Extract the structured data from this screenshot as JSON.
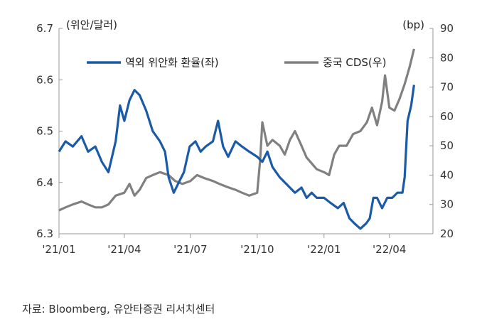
{
  "chart_data": {
    "type": "line",
    "title": "",
    "left_axis": {
      "label": "(위안/달러)",
      "min": 6.3,
      "max": 6.7,
      "ticks": [
        "6.3",
        "6.4",
        "6.5",
        "6.6",
        "6.7"
      ]
    },
    "right_axis": {
      "label": "(bp)",
      "min": 20,
      "max": 90,
      "ticks": [
        "20",
        "30",
        "40",
        "50",
        "60",
        "70",
        "80",
        "90"
      ]
    },
    "x_axis": {
      "start": "2021-01-01",
      "end": "2022-05-31",
      "ticks": [
        {
          "label": "'21/01",
          "date": "2021-01-01"
        },
        {
          "label": "'21/04",
          "date": "2021-04-01"
        },
        {
          "label": "'21/07",
          "date": "2021-07-01"
        },
        {
          "label": "'21/10",
          "date": "2021-10-01"
        },
        {
          "label": "'22/01",
          "date": "2022-01-01"
        },
        {
          "label": "'22/04",
          "date": "2022-04-01"
        }
      ]
    },
    "legend_position": "top",
    "grid": false,
    "series": [
      {
        "name": "역외 위안화 환율(좌)",
        "axis": "left",
        "color": "#1a5aa6",
        "points": [
          [
            "2021-01-01",
            6.46
          ],
          [
            "2021-01-10",
            6.48
          ],
          [
            "2021-01-20",
            6.47
          ],
          [
            "2021-02-01",
            6.49
          ],
          [
            "2021-02-10",
            6.46
          ],
          [
            "2021-02-20",
            6.47
          ],
          [
            "2021-03-01",
            6.44
          ],
          [
            "2021-03-10",
            6.42
          ],
          [
            "2021-03-20",
            6.48
          ],
          [
            "2021-03-26",
            6.55
          ],
          [
            "2021-04-01",
            6.52
          ],
          [
            "2021-04-08",
            6.56
          ],
          [
            "2021-04-15",
            6.58
          ],
          [
            "2021-04-22",
            6.57
          ],
          [
            "2021-05-01",
            6.54
          ],
          [
            "2021-05-10",
            6.5
          ],
          [
            "2021-05-20",
            6.48
          ],
          [
            "2021-05-27",
            6.46
          ],
          [
            "2021-06-01",
            6.41
          ],
          [
            "2021-06-08",
            6.38
          ],
          [
            "2021-06-15",
            6.4
          ],
          [
            "2021-06-22",
            6.42
          ],
          [
            "2021-06-30",
            6.47
          ],
          [
            "2021-07-08",
            6.48
          ],
          [
            "2021-07-15",
            6.46
          ],
          [
            "2021-07-22",
            6.47
          ],
          [
            "2021-08-01",
            6.48
          ],
          [
            "2021-08-08",
            6.52
          ],
          [
            "2021-08-15",
            6.47
          ],
          [
            "2021-08-22",
            6.45
          ],
          [
            "2021-09-01",
            6.48
          ],
          [
            "2021-09-10",
            6.47
          ],
          [
            "2021-09-20",
            6.46
          ],
          [
            "2021-10-01",
            6.45
          ],
          [
            "2021-10-08",
            6.44
          ],
          [
            "2021-10-15",
            6.46
          ],
          [
            "2021-10-22",
            6.43
          ],
          [
            "2021-11-01",
            6.41
          ],
          [
            "2021-11-08",
            6.4
          ],
          [
            "2021-11-15",
            6.39
          ],
          [
            "2021-11-22",
            6.38
          ],
          [
            "2021-12-01",
            6.39
          ],
          [
            "2021-12-08",
            6.37
          ],
          [
            "2021-12-15",
            6.38
          ],
          [
            "2021-12-22",
            6.37
          ],
          [
            "2022-01-01",
            6.37
          ],
          [
            "2022-01-10",
            6.36
          ],
          [
            "2022-01-20",
            6.35
          ],
          [
            "2022-01-28",
            6.36
          ],
          [
            "2022-02-05",
            6.33
          ],
          [
            "2022-02-12",
            6.32
          ],
          [
            "2022-02-20",
            6.31
          ],
          [
            "2022-02-28",
            6.32
          ],
          [
            "2022-03-05",
            6.33
          ],
          [
            "2022-03-10",
            6.37
          ],
          [
            "2022-03-15",
            6.37
          ],
          [
            "2022-03-22",
            6.35
          ],
          [
            "2022-03-29",
            6.37
          ],
          [
            "2022-04-05",
            6.37
          ],
          [
            "2022-04-12",
            6.38
          ],
          [
            "2022-04-19",
            6.38
          ],
          [
            "2022-04-22",
            6.41
          ],
          [
            "2022-04-26",
            6.52
          ],
          [
            "2022-05-01",
            6.55
          ],
          [
            "2022-05-05",
            6.59
          ]
        ]
      },
      {
        "name": "중국 CDS(우)",
        "axis": "right",
        "color": "#808080",
        "points": [
          [
            "2021-01-01",
            28
          ],
          [
            "2021-01-10",
            29
          ],
          [
            "2021-01-20",
            30
          ],
          [
            "2021-02-01",
            31
          ],
          [
            "2021-02-10",
            30
          ],
          [
            "2021-02-20",
            29
          ],
          [
            "2021-03-01",
            29
          ],
          [
            "2021-03-10",
            30
          ],
          [
            "2021-03-20",
            33
          ],
          [
            "2021-04-01",
            34
          ],
          [
            "2021-04-08",
            37
          ],
          [
            "2021-04-15",
            33
          ],
          [
            "2021-04-22",
            35
          ],
          [
            "2021-05-01",
            39
          ],
          [
            "2021-05-10",
            40
          ],
          [
            "2021-05-20",
            41
          ],
          [
            "2021-06-01",
            40
          ],
          [
            "2021-06-10",
            38
          ],
          [
            "2021-06-20",
            37
          ],
          [
            "2021-07-01",
            38
          ],
          [
            "2021-07-10",
            40
          ],
          [
            "2021-07-20",
            39
          ],
          [
            "2021-08-01",
            38
          ],
          [
            "2021-08-10",
            37
          ],
          [
            "2021-08-20",
            36
          ],
          [
            "2021-09-01",
            35
          ],
          [
            "2021-09-10",
            34
          ],
          [
            "2021-09-20",
            33
          ],
          [
            "2021-10-01",
            34
          ],
          [
            "2021-10-05",
            45
          ],
          [
            "2021-10-08",
            58
          ],
          [
            "2021-10-15",
            50
          ],
          [
            "2021-10-22",
            52
          ],
          [
            "2021-11-01",
            50
          ],
          [
            "2021-11-08",
            47
          ],
          [
            "2021-11-15",
            52
          ],
          [
            "2021-11-22",
            55
          ],
          [
            "2021-12-01",
            50
          ],
          [
            "2021-12-08",
            46
          ],
          [
            "2021-12-15",
            44
          ],
          [
            "2021-12-22",
            42
          ],
          [
            "2022-01-01",
            41
          ],
          [
            "2022-01-08",
            40
          ],
          [
            "2022-01-15",
            47
          ],
          [
            "2022-01-22",
            50
          ],
          [
            "2022-02-01",
            50
          ],
          [
            "2022-02-10",
            54
          ],
          [
            "2022-02-20",
            55
          ],
          [
            "2022-03-01",
            58
          ],
          [
            "2022-03-08",
            63
          ],
          [
            "2022-03-15",
            57
          ],
          [
            "2022-03-22",
            65
          ],
          [
            "2022-03-26",
            74
          ],
          [
            "2022-04-01",
            63
          ],
          [
            "2022-04-08",
            62
          ],
          [
            "2022-04-15",
            66
          ],
          [
            "2022-04-22",
            71
          ],
          [
            "2022-04-29",
            77
          ],
          [
            "2022-05-05",
            83
          ]
        ]
      }
    ]
  },
  "source": "자료: Bloomberg, 유안타증권 리서치센터"
}
